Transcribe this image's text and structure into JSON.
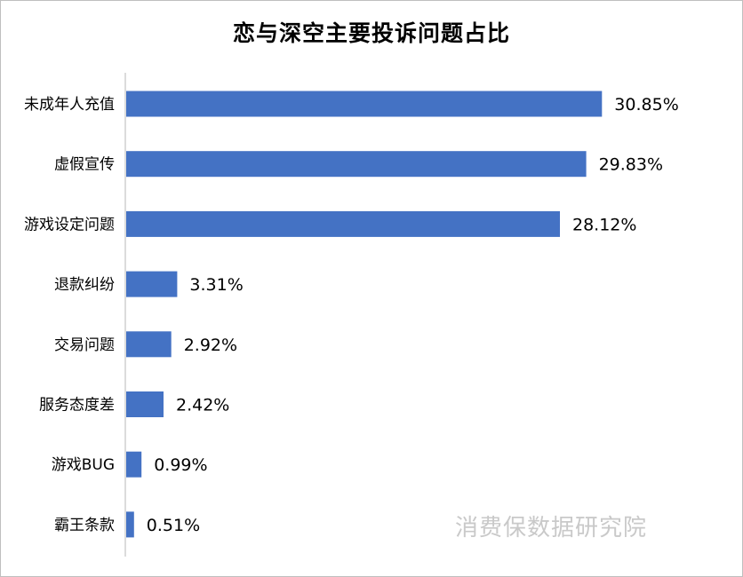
{
  "chart_data": {
    "type": "bar",
    "orientation": "horizontal",
    "title": "恋与深空主要投诉问题占比",
    "categories": [
      "未成年人充值",
      "虚假宣传",
      "游戏设定问题",
      "退款纠纷",
      "交易问题",
      "服务态度差",
      "游戏BUG",
      "霸王条款"
    ],
    "values": [
      30.85,
      29.83,
      28.12,
      3.31,
      2.92,
      2.42,
      0.99,
      0.51
    ],
    "value_labels": [
      "30.85%",
      "29.83%",
      "28.12%",
      "3.31%",
      "2.92%",
      "2.42%",
      "0.99%",
      "0.51%"
    ],
    "xlim": [
      0,
      34
    ],
    "grid": false,
    "bar_color": "#4472c4"
  },
  "watermark": "消费保数据研究院"
}
